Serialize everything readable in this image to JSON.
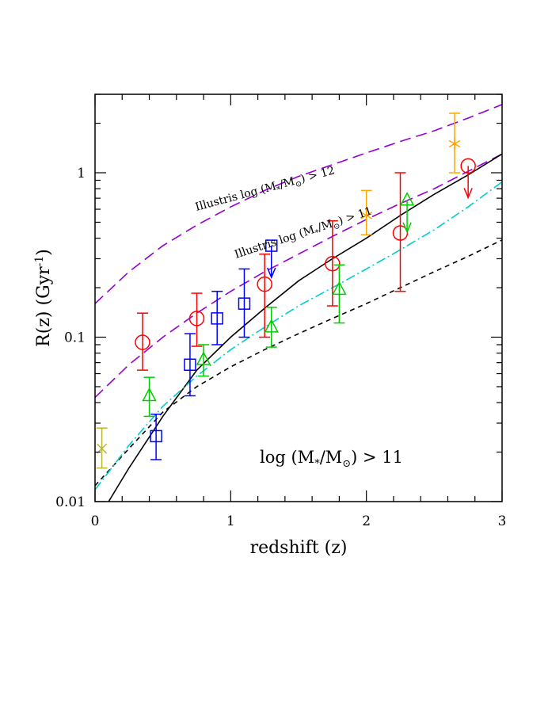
{
  "chart_data": {
    "type": "scatter",
    "xlabel": "redshift (z)",
    "ylabel_main": "R(z)",
    "ylabel_unit": "(Gyr",
    "ylabel_exp": "-1",
    "ylabel_close": ")",
    "xlim": [
      0,
      3
    ],
    "ylim": [
      0.01,
      3
    ],
    "yscale": "log",
    "grid": false,
    "x_ticks": [
      0,
      1,
      2,
      3
    ],
    "y_ticks": [
      0.01,
      0.1,
      1
    ],
    "x_tick_labels": [
      "0",
      "1",
      "2",
      "3"
    ],
    "y_tick_labels": [
      "0.01",
      "0.1",
      "1"
    ],
    "annotation": {
      "prefix": "log (M",
      "sub": "*",
      "mid": "/M",
      "sun": "⊙",
      "suffix": ") > 11"
    },
    "curve_labels": [
      {
        "prefix": "Illustris log (M",
        "sub": "*",
        "mid": "/M",
        "sun": "⊙",
        "suffix": ") > 12"
      },
      {
        "prefix": "Illustris log (M",
        "sub": "*",
        "mid": "/M",
        "sun": "⊙",
        "suffix": ") > 11"
      }
    ],
    "curves": [
      {
        "style": "long-dash",
        "color": "#9400d3",
        "x": [
          0,
          0.25,
          0.5,
          0.75,
          1,
          1.25,
          1.5,
          1.75,
          2,
          2.25,
          2.5,
          2.75,
          3
        ],
        "y": [
          0.16,
          0.25,
          0.36,
          0.48,
          0.62,
          0.78,
          0.95,
          1.12,
          1.32,
          1.55,
          1.8,
          2.15,
          2.6
        ]
      },
      {
        "style": "long-dash",
        "color": "#9400d3",
        "x": [
          0,
          0.25,
          0.5,
          0.75,
          1,
          1.25,
          1.5,
          1.75,
          2,
          2.25,
          2.5,
          2.75,
          3
        ],
        "y": [
          0.043,
          0.068,
          0.1,
          0.14,
          0.19,
          0.25,
          0.32,
          0.41,
          0.52,
          0.65,
          0.8,
          1.02,
          1.3
        ]
      },
      {
        "style": "solid",
        "color": "#000000",
        "x": [
          0.1,
          0.25,
          0.5,
          0.75,
          1,
          1.25,
          1.5,
          1.75,
          2,
          2.25,
          2.5,
          2.75,
          3
        ],
        "y": [
          0.01,
          0.016,
          0.033,
          0.063,
          0.1,
          0.15,
          0.22,
          0.3,
          0.4,
          0.55,
          0.74,
          0.97,
          1.3
        ]
      },
      {
        "style": "short-dash",
        "color": "#000000",
        "x": [
          0,
          0.25,
          0.5,
          0.75,
          1,
          1.25,
          1.5,
          1.75,
          2,
          2.25,
          2.5,
          2.75,
          3
        ],
        "y": [
          0.0125,
          0.021,
          0.035,
          0.05,
          0.066,
          0.084,
          0.105,
          0.13,
          0.16,
          0.2,
          0.25,
          0.31,
          0.39
        ]
      },
      {
        "style": "dash-dot",
        "color": "#00cdcd",
        "x": [
          0,
          0.25,
          0.5,
          0.75,
          1,
          1.25,
          1.5,
          1.75,
          2,
          2.25,
          2.5,
          2.75,
          3
        ],
        "y": [
          0.0118,
          0.022,
          0.038,
          0.058,
          0.084,
          0.115,
          0.155,
          0.2,
          0.26,
          0.34,
          0.45,
          0.62,
          0.88
        ]
      }
    ],
    "series": [
      {
        "marker": "circle",
        "color": "#ff0000",
        "points": [
          {
            "x": 0.35,
            "y": 0.093,
            "lo": 0.063,
            "hi": 0.14
          },
          {
            "x": 0.75,
            "y": 0.13,
            "lo": 0.088,
            "hi": 0.185
          },
          {
            "x": 1.25,
            "y": 0.21,
            "lo": 0.1,
            "hi": 0.32
          },
          {
            "x": 1.75,
            "y": 0.28,
            "lo": 0.155,
            "hi": 0.51
          },
          {
            "x": 2.25,
            "y": 0.43,
            "lo": 0.19,
            "hi": 1.0
          },
          {
            "x": 2.75,
            "y": 1.1,
            "upper_limit": true
          }
        ]
      },
      {
        "marker": "square",
        "color": "#0000ff",
        "points": [
          {
            "x": 0.45,
            "y": 0.025,
            "lo": 0.018,
            "hi": 0.034
          },
          {
            "x": 0.7,
            "y": 0.068,
            "lo": 0.044,
            "hi": 0.105
          },
          {
            "x": 0.9,
            "y": 0.13,
            "lo": 0.09,
            "hi": 0.19
          },
          {
            "x": 1.1,
            "y": 0.16,
            "lo": 0.1,
            "hi": 0.26
          },
          {
            "x": 1.3,
            "y": 0.36,
            "upper_limit": true
          }
        ]
      },
      {
        "marker": "triangle",
        "color": "#00cc00",
        "points": [
          {
            "x": 0.4,
            "y": 0.044,
            "lo": 0.033,
            "hi": 0.057
          },
          {
            "x": 0.8,
            "y": 0.073,
            "lo": 0.058,
            "hi": 0.09
          },
          {
            "x": 1.3,
            "y": 0.115,
            "lo": 0.087,
            "hi": 0.152
          },
          {
            "x": 1.8,
            "y": 0.195,
            "lo": 0.122,
            "hi": 0.275
          },
          {
            "x": 2.3,
            "y": 0.68,
            "upper_limit": true
          }
        ]
      },
      {
        "marker": "asterisk",
        "color": "#ffa500",
        "points": [
          {
            "x": 2.0,
            "y": 0.55,
            "lo": 0.42,
            "hi": 0.78
          },
          {
            "x": 2.65,
            "y": 1.5,
            "lo": 1.0,
            "hi": 2.3
          }
        ]
      },
      {
        "marker": "cross",
        "color": "#b8b830",
        "points": [
          {
            "x": 0.05,
            "y": 0.021,
            "lo": 0.016,
            "hi": 0.028
          }
        ]
      }
    ]
  }
}
